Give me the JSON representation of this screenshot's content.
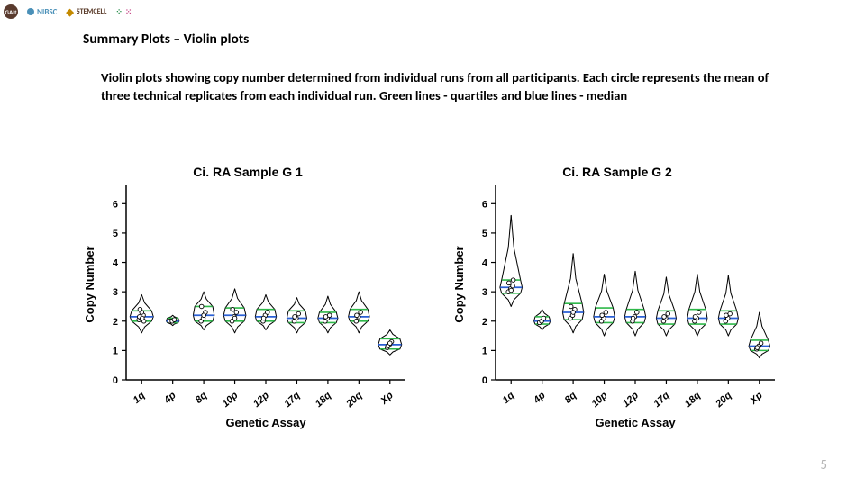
{
  "logos": [
    {
      "name": "GAIt",
      "color": "#5a3b2e",
      "text_color": "#ffffff",
      "style": "circle"
    },
    {
      "name": "NIBSC",
      "color": "#4a90b8",
      "text_color": "#4a90b8",
      "style": "text-with-dot"
    },
    {
      "name": "STEMCELL",
      "color": "#c48a00",
      "text_color": "#5a3b2a",
      "style": "shield"
    },
    {
      "name": "",
      "color": "#2b8f4e",
      "style": "dots"
    }
  ],
  "heading": "Summary Plots – Violin plots",
  "body": "Violin plots showing copy number determined from individual runs from all participants. Each circle represents the mean of three technical replicates from each individual run. Green lines - quartiles and blue lines - median",
  "page_number": "5",
  "chart_common": {
    "ylabel": "Copy Number",
    "xlabel": "Genetic Assay",
    "ylim": [
      0,
      6.5
    ],
    "yticks": [
      0,
      1,
      2,
      3,
      4,
      5,
      6
    ],
    "xticks": [
      "1q",
      "4p",
      "8q",
      "10p",
      "12p",
      "17q",
      "18q",
      "20q",
      "Xp"
    ],
    "title_fontsize": 14,
    "axis_label_fontsize": 13,
    "tick_fontsize": 11,
    "axis_color": "#000000",
    "background": "#ffffff",
    "violin_fill": "#ffffff",
    "violin_stroke": "#000000",
    "median_color": "#2a5fd4",
    "quartile_color": "#2fb84a",
    "point_stroke": "#000000",
    "point_fill": "#ffffff",
    "point_radius": 2.3,
    "violin_halfwidth_max": 13
  },
  "charts": [
    {
      "title": "Ci. RA Sample G 1",
      "violins": [
        {
          "median": 2.15,
          "q1": 2.0,
          "q3": 2.35,
          "min": 1.6,
          "max": 2.9,
          "width": 1.0,
          "points": [
            2.05,
            2.1,
            2.2,
            2.15,
            2.3,
            2.0,
            2.4,
            2.1
          ]
        },
        {
          "median": 2.0,
          "q1": 1.95,
          "q3": 2.1,
          "min": 1.85,
          "max": 2.2,
          "width": 0.55,
          "points": [
            2.0,
            2.0,
            2.05
          ]
        },
        {
          "median": 2.2,
          "q1": 2.0,
          "q3": 2.5,
          "min": 1.7,
          "max": 3.0,
          "width": 0.9,
          "points": [
            2.0,
            2.1,
            2.3,
            2.5,
            2.2
          ]
        },
        {
          "median": 2.2,
          "q1": 2.0,
          "q3": 2.45,
          "min": 1.6,
          "max": 3.1,
          "width": 0.95,
          "points": [
            2.0,
            2.15,
            2.3,
            2.4,
            2.1
          ]
        },
        {
          "median": 2.15,
          "q1": 2.0,
          "q3": 2.4,
          "min": 1.7,
          "max": 2.9,
          "width": 0.9,
          "points": [
            2.0,
            2.2,
            2.3,
            2.1
          ]
        },
        {
          "median": 2.1,
          "q1": 1.95,
          "q3": 2.35,
          "min": 1.6,
          "max": 2.8,
          "width": 0.85,
          "points": [
            2.0,
            2.1,
            2.25,
            2.15
          ]
        },
        {
          "median": 2.1,
          "q1": 1.95,
          "q3": 2.3,
          "min": 1.6,
          "max": 2.85,
          "width": 0.85,
          "points": [
            2.0,
            2.1,
            2.2,
            2.15
          ]
        },
        {
          "median": 2.15,
          "q1": 2.0,
          "q3": 2.4,
          "min": 1.6,
          "max": 3.0,
          "width": 0.9,
          "points": [
            2.0,
            2.15,
            2.3,
            2.2
          ]
        },
        {
          "median": 1.2,
          "q1": 1.05,
          "q3": 1.4,
          "min": 0.85,
          "max": 1.7,
          "width": 1.0,
          "points": [
            1.1,
            1.2,
            1.3,
            1.15,
            1.25
          ]
        }
      ]
    },
    {
      "title": "Ci. RA Sample G 2",
      "violins": [
        {
          "median": 3.15,
          "q1": 2.95,
          "q3": 3.4,
          "min": 2.5,
          "max": 5.6,
          "width": 0.95,
          "points": [
            3.0,
            3.1,
            3.2,
            3.3,
            3.05,
            3.4
          ]
        },
        {
          "median": 2.0,
          "q1": 1.9,
          "q3": 2.15,
          "min": 1.7,
          "max": 2.4,
          "width": 0.7,
          "points": [
            1.95,
            2.0,
            2.1
          ]
        },
        {
          "median": 2.3,
          "q1": 2.05,
          "q3": 2.6,
          "min": 1.6,
          "max": 4.3,
          "width": 0.9,
          "points": [
            2.1,
            2.2,
            2.4,
            2.5,
            2.3
          ]
        },
        {
          "median": 2.15,
          "q1": 1.95,
          "q3": 2.45,
          "min": 1.5,
          "max": 3.6,
          "width": 0.9,
          "points": [
            2.0,
            2.1,
            2.3,
            2.2
          ]
        },
        {
          "median": 2.15,
          "q1": 1.95,
          "q3": 2.4,
          "min": 1.5,
          "max": 3.7,
          "width": 0.9,
          "points": [
            2.0,
            2.15,
            2.3,
            2.1
          ]
        },
        {
          "median": 2.1,
          "q1": 1.9,
          "q3": 2.35,
          "min": 1.5,
          "max": 3.5,
          "width": 0.85,
          "points": [
            2.0,
            2.1,
            2.25,
            2.15
          ]
        },
        {
          "median": 2.1,
          "q1": 1.9,
          "q3": 2.4,
          "min": 1.5,
          "max": 3.6,
          "width": 0.85,
          "points": [
            2.0,
            2.1,
            2.3,
            2.15
          ]
        },
        {
          "median": 2.1,
          "q1": 1.9,
          "q3": 2.35,
          "min": 1.5,
          "max": 3.55,
          "width": 0.85,
          "points": [
            2.0,
            2.1,
            2.25,
            2.2
          ]
        },
        {
          "median": 1.15,
          "q1": 1.0,
          "q3": 1.35,
          "min": 0.75,
          "max": 2.3,
          "width": 0.9,
          "points": [
            1.05,
            1.15,
            1.25,
            1.1
          ]
        }
      ]
    }
  ]
}
